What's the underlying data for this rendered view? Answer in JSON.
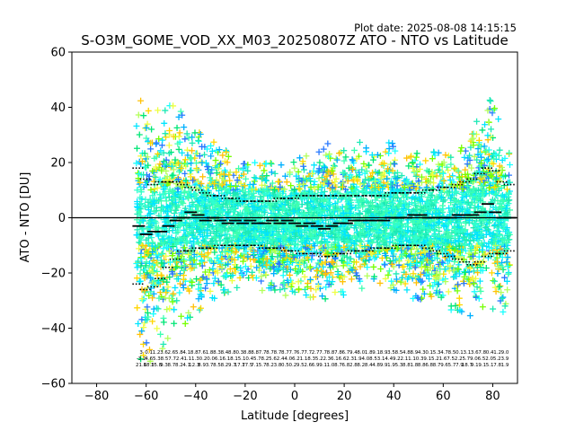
{
  "chart_data": {
    "type": "scatter",
    "title": "S-O3M_GOME_VOD_XX_M03_20250807Z ATO - NTO vs Latitude",
    "plot_date": "Plot date: 2025-08-08 14:15:15",
    "xlabel": "Latitude [degrees]",
    "ylabel": "ATO - NTO [DU]",
    "xlim": [
      -90,
      90
    ],
    "ylim": [
      -60,
      60
    ],
    "x_ticks": [
      -80,
      -60,
      -40,
      -20,
      0,
      20,
      40,
      60,
      80
    ],
    "y_ticks": [
      -60,
      -40,
      -20,
      0,
      20,
      40,
      60
    ],
    "x_tick_labels": [
      "−80",
      "−60",
      "−40",
      "−20",
      "0",
      "20",
      "40",
      "60",
      "80"
    ],
    "y_tick_labels": [
      "−60",
      "−40",
      "−20",
      "0",
      "20",
      "40",
      "60"
    ],
    "zero_line": 0,
    "grid": false,
    "bins_lat": [
      -63,
      -60,
      -57,
      -54,
      -51,
      -48,
      -45,
      -42,
      -39,
      -36,
      -33,
      -30,
      -27,
      -24,
      -21,
      -18,
      -15,
      -12,
      -9,
      -6,
      -3,
      0,
      3,
      6,
      9,
      12,
      15,
      18,
      21,
      24,
      27,
      30,
      33,
      36,
      39,
      42,
      45,
      48,
      51,
      54,
      57,
      60,
      63,
      66,
      69,
      72,
      75,
      78,
      81,
      84,
      87,
      90
    ],
    "mean_values": [
      -3,
      -6,
      -5,
      -5,
      -3,
      -1,
      0,
      2,
      1,
      -1,
      0,
      -1,
      -2,
      -1,
      -2,
      -1,
      -2,
      -2,
      -1,
      -2,
      -1,
      -2,
      -3,
      -2,
      -3,
      -4,
      -3,
      -2,
      -2,
      -1,
      -1,
      -1,
      -1,
      -1,
      0,
      0,
      0,
      1,
      1,
      0,
      0,
      0,
      0,
      1,
      1,
      1,
      2,
      5,
      2,
      0,
      0
    ],
    "upper_std": [
      18,
      14,
      12,
      13,
      13,
      13,
      12,
      11,
      10,
      9,
      8,
      8,
      7,
      7,
      6,
      6,
      6,
      6,
      6,
      7,
      7,
      7,
      8,
      8,
      8,
      8,
      8,
      8,
      8,
      8,
      8,
      8,
      8,
      8,
      9,
      9,
      9,
      9,
      9,
      10,
      10,
      11,
      11,
      12,
      13,
      14,
      16,
      18,
      17,
      13,
      12
    ],
    "lower_std": [
      -24,
      -26,
      -25,
      -22,
      -18,
      -15,
      -12,
      -12,
      -11,
      -11,
      -11,
      -10,
      -10,
      -10,
      -10,
      -10,
      -10,
      -11,
      -11,
      -11,
      -12,
      -12,
      -13,
      -13,
      -13,
      -14,
      -14,
      -13,
      -13,
      -12,
      -12,
      -12,
      -11,
      -11,
      -11,
      -10,
      -10,
      -10,
      -10,
      -11,
      -12,
      -13,
      -14,
      -15,
      -16,
      -17,
      -16,
      -14,
      -13,
      -13,
      -12
    ],
    "envelope_upper": [
      45,
      40,
      38,
      40,
      42,
      40,
      38,
      34,
      32,
      30,
      28,
      26,
      24,
      22,
      20,
      20,
      20,
      22,
      20,
      22,
      20,
      22,
      24,
      25,
      24,
      26,
      28,
      25,
      24,
      26,
      28,
      26,
      24,
      26,
      28,
      26,
      24,
      25,
      24,
      22,
      25,
      24,
      22,
      26,
      28,
      34,
      40,
      45,
      40,
      30,
      25
    ],
    "envelope_lower": [
      -50,
      -55,
      -52,
      -48,
      -45,
      -42,
      -40,
      -36,
      -34,
      -32,
      -30,
      -28,
      -28,
      -26,
      -24,
      -24,
      -26,
      -28,
      -26,
      -28,
      -30,
      -28,
      -30,
      -32,
      -30,
      -30,
      -30,
      -28,
      -28,
      -26,
      -26,
      -26,
      -24,
      -24,
      -26,
      -28,
      -30,
      -32,
      -30,
      -30,
      -30,
      -32,
      -34,
      -34,
      -36,
      -36,
      -34,
      -32,
      -34,
      -36,
      -30
    ],
    "stat_labels_row1": [
      "3",
      "0.1",
      "1.2",
      "3.6",
      "2.6",
      "5.8",
      "4.1",
      "8.8",
      "7.6",
      "1.8",
      "8.3",
      "8.4",
      "8.8",
      "0.3",
      "8.8",
      "8.8",
      "7.7",
      "8.7",
      "8.7",
      "8.7",
      "7.7",
      "6.7",
      "7.7",
      "2.7",
      "7.7",
      "8.8",
      "7.8",
      "6.7",
      "9.4",
      "8.0",
      "1.8",
      "9.1",
      "8.9",
      "3.5",
      "8.5",
      "4.8",
      "8.9",
      "4.3",
      "0.1",
      "5.3",
      "4.7",
      "8.5",
      "0.1",
      "3.1",
      "3.6",
      "7.8",
      "0.4",
      "1.2",
      "9.0"
    ],
    "stat_labels_row2": [
      "-3.2",
      "4.6",
      "5.3",
      "8.5",
      "7.7",
      "2.4",
      "1.1",
      "1.3",
      "0.2",
      "0.0",
      "6.1",
      "6.1",
      "8.1",
      "5.1",
      "0.4",
      "5.7",
      "8.2",
      "5.6",
      "2.4",
      "4.0",
      "6.2",
      "1.1",
      "8.3",
      "5.2",
      "2.3",
      "6.1",
      "6.6",
      "2.3",
      "1.9",
      "4.0",
      "8.5",
      "3.1",
      "4.4",
      "9.2",
      "2.1",
      "1.1",
      "0.3",
      "9.1",
      "5.2",
      "1.6",
      "7.5",
      "2.2",
      "5.7",
      "9.0",
      "6.5",
      "2.0",
      "5.2",
      "3.9"
    ],
    "stat_labels_row3": [
      "21.6",
      "18.3",
      "15.8",
      "9.3",
      "8.7",
      "8.2",
      "4.1",
      "12.3",
      "8.9",
      "3.7",
      "8.5",
      "8.2",
      "9.7",
      "17.7",
      "17.5",
      "7.1",
      "5.7",
      "8.2",
      "3.8",
      "0.5",
      "0.2",
      "9.5",
      "2.6",
      "6.9",
      "9.1",
      "1.0",
      "8.7",
      "6.8",
      "2.8",
      "8.2",
      "8.4",
      "4.8",
      "9.9",
      "1.9",
      "5.3",
      "8.8",
      "1.8",
      "8.8",
      "6.8",
      "8.7",
      "9.6",
      "5.7",
      "7.9",
      "18.7",
      "9.1",
      "9.1",
      "5.1",
      "7.8",
      "1.9"
    ]
  }
}
